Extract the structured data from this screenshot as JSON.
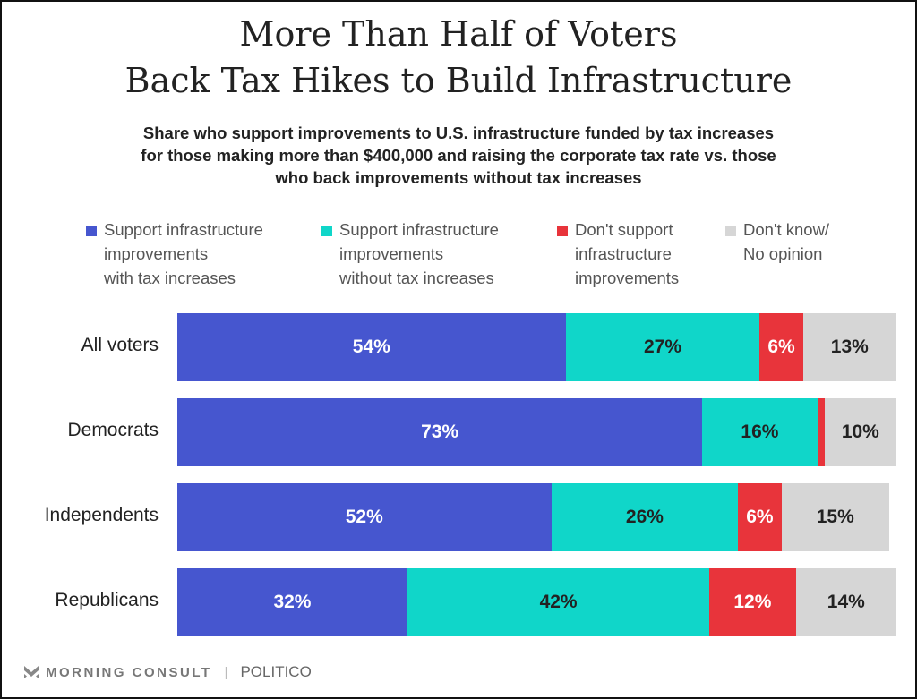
{
  "chart_data": {
    "type": "bar",
    "orientation": "horizontal-stacked-100",
    "title_lines": [
      "More Than Half of Voters",
      "Back Tax Hikes to Build Infrastructure"
    ],
    "subtitle": "Share who support improvements to U.S. infrastructure funded by tax increases for those making more than $400,000 and raising the corporate tax rate vs. those who back improvements without tax increases",
    "categories": [
      "All voters",
      "Democrats",
      "Independents",
      "Republicans"
    ],
    "series": [
      {
        "name": "Support infrastructure\nimprovements\nwith tax increases",
        "color": "#4656cf",
        "text_color": "#ffffff",
        "values": [
          54,
          73,
          52,
          32
        ],
        "labels": [
          "54%",
          "73%",
          "52%",
          "32%"
        ]
      },
      {
        "name": "Support infrastructure\nimprovements\nwithout tax increases",
        "color": "#10d6c9",
        "text_color": "#222222",
        "values": [
          27,
          16,
          26,
          42
        ],
        "labels": [
          "27%",
          "16%",
          "26%",
          "42%"
        ]
      },
      {
        "name": "Don't support\ninfrastructure\nimprovements",
        "color": "#e8343b",
        "text_color": "#ffffff",
        "values": [
          6,
          1,
          6,
          12
        ],
        "labels": [
          "6%",
          "",
          "6%",
          "12%"
        ]
      },
      {
        "name": "Don't know/\nNo opinion",
        "color": "#d6d6d6",
        "text_color": "#222222",
        "values": [
          13,
          10,
          15,
          14
        ],
        "labels": [
          "13%",
          "10%",
          "15%",
          "14%"
        ]
      }
    ],
    "xlim": [
      0,
      100
    ],
    "grid": false,
    "legend_position": "top"
  },
  "footer": {
    "brand": "MORNING CONSULT",
    "partner": "POLITICO",
    "separator": "|"
  }
}
